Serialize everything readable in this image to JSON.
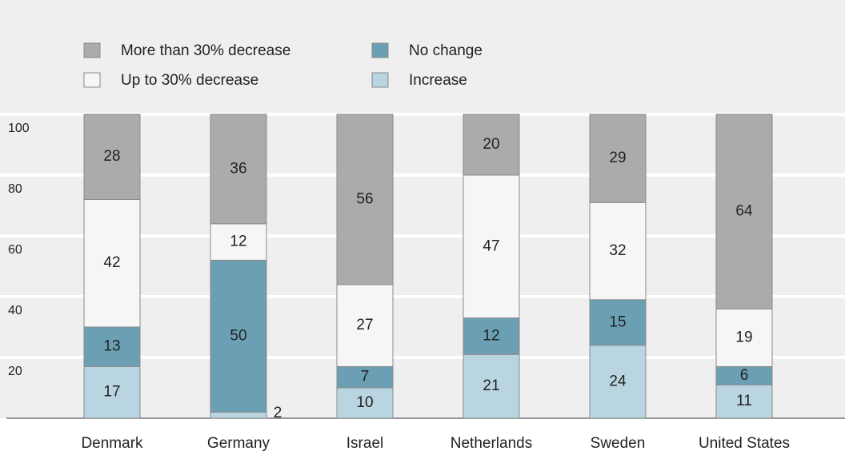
{
  "chart_data": {
    "type": "stacked_bar",
    "categories": [
      "Denmark",
      "Germany",
      "Israel",
      "Netherlands",
      "Sweden",
      "United States"
    ],
    "series": [
      {
        "name": "Increase",
        "color": "#b9d5e1",
        "values": [
          17,
          2,
          10,
          21,
          24,
          11
        ]
      },
      {
        "name": "No change",
        "color": "#6b9fb4",
        "values": [
          13,
          50,
          7,
          12,
          15,
          6
        ]
      },
      {
        "name": "Up to 30% decrease",
        "color": "#f6f6f6",
        "values": [
          42,
          12,
          27,
          47,
          32,
          19
        ]
      },
      {
        "name": "More than 30% decrease",
        "color": "#ababad",
        "values": [
          28,
          36,
          56,
          20,
          29,
          64
        ]
      }
    ],
    "ylim": [
      0,
      100
    ],
    "yticks": [
      20,
      40,
      60,
      80,
      100
    ],
    "grid": true
  }
}
